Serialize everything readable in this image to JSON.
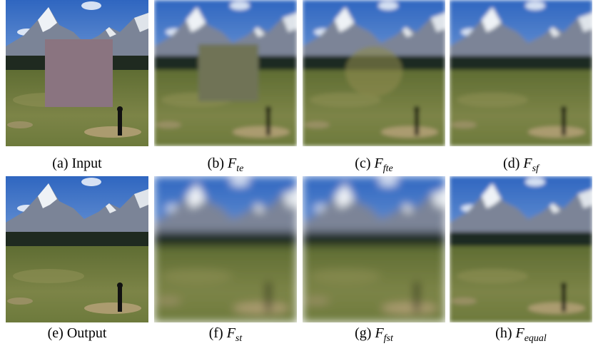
{
  "panels": [
    {
      "label": "(a)",
      "text": "Input"
    },
    {
      "label": "(b)",
      "symbol": "F",
      "subscript": "te"
    },
    {
      "label": "(c)",
      "symbol": "F",
      "subscript": "fte"
    },
    {
      "label": "(d)",
      "symbol": "F",
      "subscript": "sf"
    },
    {
      "label": "(e)",
      "text": "Output"
    },
    {
      "label": "(f)",
      "symbol": "F",
      "subscript": "st"
    },
    {
      "label": "(g)",
      "symbol": "F",
      "subscript": "fst"
    },
    {
      "label": "(h)",
      "symbol": "F",
      "subscript": "equal"
    }
  ]
}
